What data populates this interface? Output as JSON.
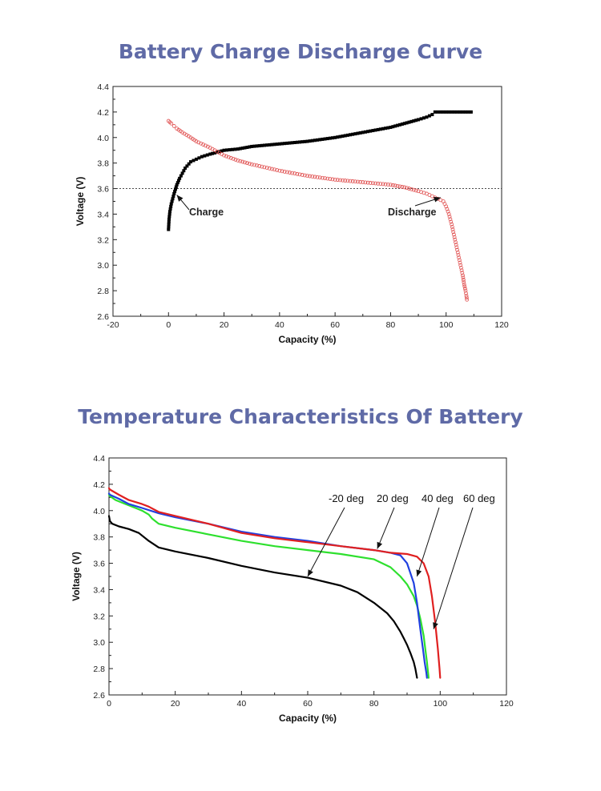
{
  "chart_data": [
    {
      "type": "scatter",
      "title": "Battery Charge Discharge Curve",
      "xlabel": "Capacity (%)",
      "ylabel": "Voltage (V)",
      "xlim": [
        -20,
        120
      ],
      "ylim": [
        2.6,
        4.4
      ],
      "xticks": [
        "-20",
        "0",
        "20",
        "40",
        "60",
        "80",
        "100",
        "120"
      ],
      "yticks": [
        "2.6",
        "2.8",
        "3.0",
        "3.2",
        "3.4",
        "3.6",
        "3.8",
        "4.0",
        "4.2",
        "4.4"
      ],
      "reference_line": {
        "y": 3.6,
        "style": "dotted"
      },
      "annotations": [
        {
          "text": "Charge",
          "arrow_to": [
            3,
            3.55
          ]
        },
        {
          "text": "Discharge",
          "arrow_to": [
            98,
            3.53
          ]
        }
      ],
      "series": [
        {
          "name": "Charge",
          "color": "#000000",
          "marker": "filled-square",
          "x": [
            0,
            0.2,
            0.5,
            1,
            2,
            3,
            4,
            5,
            6,
            8,
            10,
            12,
            15,
            20,
            25,
            30,
            40,
            50,
            60,
            70,
            80,
            85,
            90,
            93,
            95,
            96,
            98,
            100,
            105,
            109
          ],
          "y": [
            3.28,
            3.36,
            3.42,
            3.48,
            3.56,
            3.63,
            3.68,
            3.72,
            3.76,
            3.81,
            3.83,
            3.85,
            3.87,
            3.9,
            3.91,
            3.93,
            3.95,
            3.97,
            4.0,
            4.04,
            4.08,
            4.11,
            4.14,
            4.16,
            4.18,
            4.2,
            4.2,
            4.2,
            4.2,
            4.2
          ]
        },
        {
          "name": "Discharge",
          "color": "#e05050",
          "marker": "open-circle",
          "x": [
            0,
            0.5,
            1,
            2,
            3,
            5,
            8,
            10,
            15,
            20,
            25,
            30,
            40,
            50,
            60,
            70,
            80,
            85,
            90,
            93,
            95,
            97,
            99,
            100,
            101,
            102,
            103,
            104,
            105,
            106,
            106.5,
            107,
            107.3,
            107.5
          ],
          "y": [
            4.13,
            4.12,
            4.11,
            4.09,
            4.07,
            4.04,
            4.0,
            3.97,
            3.92,
            3.86,
            3.82,
            3.79,
            3.74,
            3.7,
            3.67,
            3.65,
            3.63,
            3.61,
            3.58,
            3.56,
            3.54,
            3.52,
            3.5,
            3.46,
            3.4,
            3.32,
            3.22,
            3.12,
            3.02,
            2.92,
            2.85,
            2.8,
            2.76,
            2.73
          ]
        }
      ]
    },
    {
      "type": "line",
      "title": "Temperature Characteristics Of Battery",
      "xlabel": "Capacity (%)",
      "ylabel": "Voltage (V)",
      "xlim": [
        0,
        120
      ],
      "ylim": [
        2.6,
        4.4
      ],
      "xticks": [
        "0",
        "20",
        "40",
        "60",
        "80",
        "100",
        "120"
      ],
      "yticks": [
        "2.6",
        "2.8",
        "3.0",
        "3.2",
        "3.4",
        "3.6",
        "3.8",
        "4.0",
        "4.2",
        "4.4"
      ],
      "annotations": [
        {
          "text": "-20 deg",
          "arrow_to": [
            60,
            3.5
          ]
        },
        {
          "text": "20 deg",
          "arrow_to": [
            81,
            3.71
          ]
        },
        {
          "text": "40 deg",
          "arrow_to": [
            93,
            3.5
          ]
        },
        {
          "text": "60 deg",
          "arrow_to": [
            98,
            3.1
          ]
        }
      ],
      "series": [
        {
          "name": "-20 deg",
          "color": "#000000",
          "x": [
            0,
            0.3,
            1,
            3,
            6,
            9,
            12,
            15,
            20,
            30,
            40,
            50,
            60,
            70,
            75,
            80,
            84,
            86,
            88,
            89,
            90,
            91,
            92,
            92.5,
            93
          ],
          "y": [
            3.96,
            3.92,
            3.9,
            3.88,
            3.86,
            3.83,
            3.77,
            3.72,
            3.69,
            3.64,
            3.58,
            3.53,
            3.49,
            3.43,
            3.38,
            3.3,
            3.22,
            3.16,
            3.08,
            3.03,
            2.98,
            2.92,
            2.85,
            2.8,
            2.73
          ]
        },
        {
          "name": "20 deg",
          "color": "#2ee02e",
          "x": [
            0,
            0.3,
            2,
            5,
            8,
            10,
            12,
            13,
            15,
            20,
            30,
            40,
            50,
            60,
            70,
            80,
            85,
            88,
            90,
            92,
            93,
            94,
            95,
            95.5,
            96,
            96.3,
            96.5
          ],
          "y": [
            4.12,
            4.11,
            4.08,
            4.05,
            4.02,
            4.0,
            3.97,
            3.94,
            3.9,
            3.87,
            3.82,
            3.77,
            3.73,
            3.7,
            3.67,
            3.63,
            3.57,
            3.5,
            3.44,
            3.35,
            3.28,
            3.18,
            3.05,
            2.95,
            2.85,
            2.78,
            2.73
          ]
        },
        {
          "name": "40 deg",
          "color": "#2040e0",
          "x": [
            0,
            0.3,
            3,
            6,
            10,
            15,
            20,
            30,
            40,
            50,
            60,
            70,
            80,
            85,
            88,
            90,
            92,
            93,
            94,
            94.8,
            95.3,
            95.8,
            96
          ],
          "y": [
            4.13,
            4.12,
            4.09,
            4.05,
            4.02,
            3.98,
            3.95,
            3.9,
            3.84,
            3.8,
            3.77,
            3.73,
            3.7,
            3.68,
            3.66,
            3.6,
            3.45,
            3.3,
            3.1,
            2.95,
            2.85,
            2.77,
            2.73
          ]
        },
        {
          "name": "60 deg",
          "color": "#e02020",
          "x": [
            0,
            0.3,
            3,
            6,
            10,
            12,
            15,
            20,
            30,
            40,
            50,
            60,
            70,
            80,
            85,
            90,
            93,
            95,
            96.5,
            97.5,
            98.5,
            99.3,
            99.8,
            100
          ],
          "y": [
            4.17,
            4.16,
            4.12,
            4.08,
            4.05,
            4.03,
            3.99,
            3.96,
            3.9,
            3.83,
            3.79,
            3.76,
            3.73,
            3.7,
            3.68,
            3.67,
            3.65,
            3.6,
            3.5,
            3.35,
            3.15,
            2.95,
            2.8,
            2.73
          ]
        }
      ]
    }
  ]
}
